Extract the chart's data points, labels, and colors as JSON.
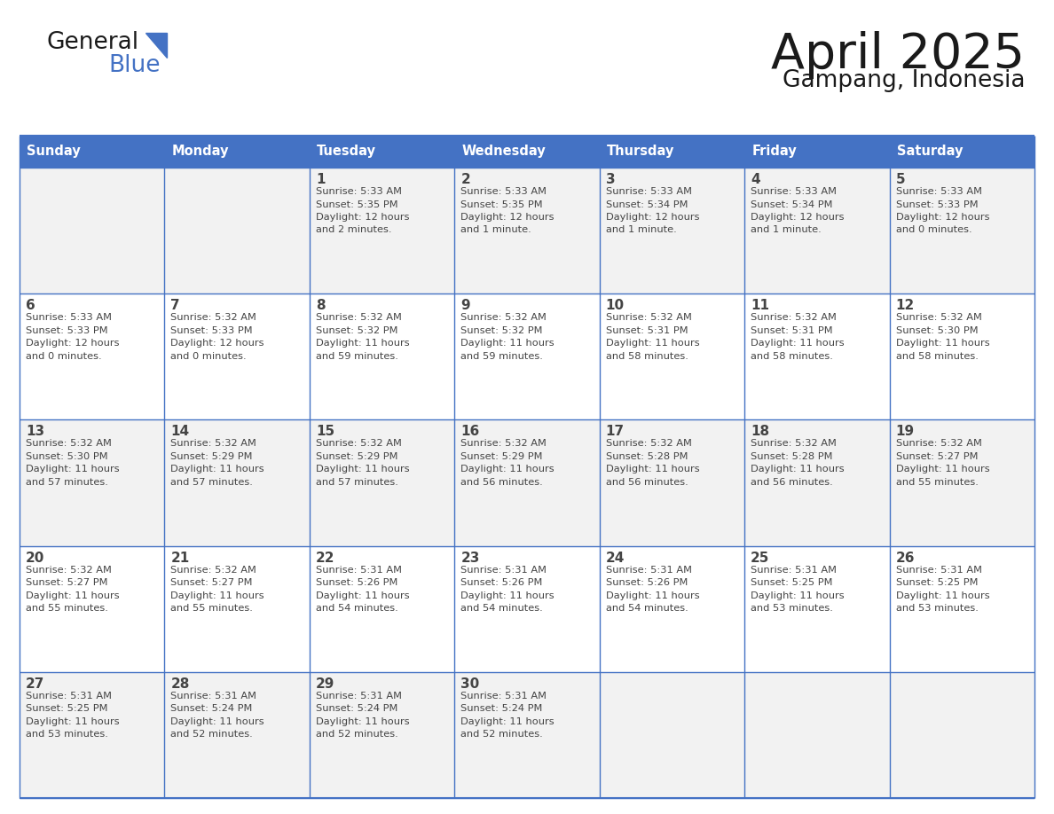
{
  "title": "April 2025",
  "subtitle": "Gampang, Indonesia",
  "header_color": "#4472C4",
  "header_text_color": "#FFFFFF",
  "day_names": [
    "Sunday",
    "Monday",
    "Tuesday",
    "Wednesday",
    "Thursday",
    "Friday",
    "Saturday"
  ],
  "row0_color": "#F2F2F2",
  "row1_color": "#FFFFFF",
  "border_color": "#4472C4",
  "text_color": "#444444",
  "calendar": [
    [
      {
        "day": "",
        "sunrise": "",
        "sunset": "",
        "daylight": ""
      },
      {
        "day": "",
        "sunrise": "",
        "sunset": "",
        "daylight": ""
      },
      {
        "day": "1",
        "sunrise": "5:33 AM",
        "sunset": "5:35 PM",
        "daylight": "12 hours and 2 minutes."
      },
      {
        "day": "2",
        "sunrise": "5:33 AM",
        "sunset": "5:35 PM",
        "daylight": "12 hours and 1 minute."
      },
      {
        "day": "3",
        "sunrise": "5:33 AM",
        "sunset": "5:34 PM",
        "daylight": "12 hours and 1 minute."
      },
      {
        "day": "4",
        "sunrise": "5:33 AM",
        "sunset": "5:34 PM",
        "daylight": "12 hours and 1 minute."
      },
      {
        "day": "5",
        "sunrise": "5:33 AM",
        "sunset": "5:33 PM",
        "daylight": "12 hours and 0 minutes."
      }
    ],
    [
      {
        "day": "6",
        "sunrise": "5:33 AM",
        "sunset": "5:33 PM",
        "daylight": "12 hours and 0 minutes."
      },
      {
        "day": "7",
        "sunrise": "5:32 AM",
        "sunset": "5:33 PM",
        "daylight": "12 hours and 0 minutes."
      },
      {
        "day": "8",
        "sunrise": "5:32 AM",
        "sunset": "5:32 PM",
        "daylight": "11 hours and 59 minutes."
      },
      {
        "day": "9",
        "sunrise": "5:32 AM",
        "sunset": "5:32 PM",
        "daylight": "11 hours and 59 minutes."
      },
      {
        "day": "10",
        "sunrise": "5:32 AM",
        "sunset": "5:31 PM",
        "daylight": "11 hours and 58 minutes."
      },
      {
        "day": "11",
        "sunrise": "5:32 AM",
        "sunset": "5:31 PM",
        "daylight": "11 hours and 58 minutes."
      },
      {
        "day": "12",
        "sunrise": "5:32 AM",
        "sunset": "5:30 PM",
        "daylight": "11 hours and 58 minutes."
      }
    ],
    [
      {
        "day": "13",
        "sunrise": "5:32 AM",
        "sunset": "5:30 PM",
        "daylight": "11 hours and 57 minutes."
      },
      {
        "day": "14",
        "sunrise": "5:32 AM",
        "sunset": "5:29 PM",
        "daylight": "11 hours and 57 minutes."
      },
      {
        "day": "15",
        "sunrise": "5:32 AM",
        "sunset": "5:29 PM",
        "daylight": "11 hours and 57 minutes."
      },
      {
        "day": "16",
        "sunrise": "5:32 AM",
        "sunset": "5:29 PM",
        "daylight": "11 hours and 56 minutes."
      },
      {
        "day": "17",
        "sunrise": "5:32 AM",
        "sunset": "5:28 PM",
        "daylight": "11 hours and 56 minutes."
      },
      {
        "day": "18",
        "sunrise": "5:32 AM",
        "sunset": "5:28 PM",
        "daylight": "11 hours and 56 minutes."
      },
      {
        "day": "19",
        "sunrise": "5:32 AM",
        "sunset": "5:27 PM",
        "daylight": "11 hours and 55 minutes."
      }
    ],
    [
      {
        "day": "20",
        "sunrise": "5:32 AM",
        "sunset": "5:27 PM",
        "daylight": "11 hours and 55 minutes."
      },
      {
        "day": "21",
        "sunrise": "5:32 AM",
        "sunset": "5:27 PM",
        "daylight": "11 hours and 55 minutes."
      },
      {
        "day": "22",
        "sunrise": "5:31 AM",
        "sunset": "5:26 PM",
        "daylight": "11 hours and 54 minutes."
      },
      {
        "day": "23",
        "sunrise": "5:31 AM",
        "sunset": "5:26 PM",
        "daylight": "11 hours and 54 minutes."
      },
      {
        "day": "24",
        "sunrise": "5:31 AM",
        "sunset": "5:26 PM",
        "daylight": "11 hours and 54 minutes."
      },
      {
        "day": "25",
        "sunrise": "5:31 AM",
        "sunset": "5:25 PM",
        "daylight": "11 hours and 53 minutes."
      },
      {
        "day": "26",
        "sunrise": "5:31 AM",
        "sunset": "5:25 PM",
        "daylight": "11 hours and 53 minutes."
      }
    ],
    [
      {
        "day": "27",
        "sunrise": "5:31 AM",
        "sunset": "5:25 PM",
        "daylight": "11 hours and 53 minutes."
      },
      {
        "day": "28",
        "sunrise": "5:31 AM",
        "sunset": "5:24 PM",
        "daylight": "11 hours and 52 minutes."
      },
      {
        "day": "29",
        "sunrise": "5:31 AM",
        "sunset": "5:24 PM",
        "daylight": "11 hours and 52 minutes."
      },
      {
        "day": "30",
        "sunrise": "5:31 AM",
        "sunset": "5:24 PM",
        "daylight": "11 hours and 52 minutes."
      },
      {
        "day": "",
        "sunrise": "",
        "sunset": "",
        "daylight": ""
      },
      {
        "day": "",
        "sunrise": "",
        "sunset": "",
        "daylight": ""
      },
      {
        "day": "",
        "sunrise": "",
        "sunset": "",
        "daylight": ""
      }
    ]
  ],
  "logo_general_color": "#1a1a1a",
  "logo_blue_color": "#4472C4",
  "logo_triangle_color": "#4472C4"
}
